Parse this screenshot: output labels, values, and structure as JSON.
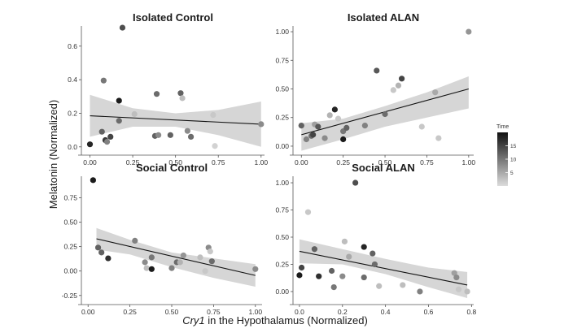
{
  "colors": {
    "ci_band": "#d6d6d6",
    "trend_line": "#111111",
    "axis_line": "#555555",
    "point_dark": "#111111",
    "point_light": "#dcdcdc"
  },
  "figure": {
    "ylabel": "Melatonin (Normalized)",
    "xlabel_italic": "Cry1",
    "xlabel_rest": " in the Hypothalamus (Normalized)",
    "legend": {
      "title": "Time",
      "range": [
        0,
        20
      ],
      "ticks": [
        "15",
        "10",
        "5"
      ]
    }
  },
  "chart_data": [
    {
      "type": "scatter",
      "title": "Isolated Control",
      "xlim": [
        -0.05,
        1.02
      ],
      "ylim": [
        -0.03,
        0.72
      ],
      "xticks": [
        "0.00",
        "0.25",
        "0.50",
        "0.75",
        "1.00"
      ],
      "xtick_values": [
        0,
        0.25,
        0.5,
        0.75,
        1.0
      ],
      "yticks": [
        "0.0",
        "0.2",
        "0.4",
        "0.6"
      ],
      "ytick_values": [
        0,
        0.2,
        0.4,
        0.6
      ],
      "trend": {
        "x": [
          0.0,
          1.0
        ],
        "y": [
          0.185,
          0.135
        ]
      },
      "band": {
        "x": [
          0.0,
          0.25,
          0.5,
          0.75,
          1.0
        ],
        "upper": [
          0.31,
          0.23,
          0.2,
          0.22,
          0.27
        ],
        "lower": [
          0.06,
          0.12,
          0.12,
          0.07,
          0.0
        ]
      },
      "points": [
        {
          "x": 0.0,
          "y": 0.015,
          "t": 18
        },
        {
          "x": 0.07,
          "y": 0.09,
          "t": 12
        },
        {
          "x": 0.08,
          "y": 0.395,
          "t": 10
        },
        {
          "x": 0.09,
          "y": 0.04,
          "t": 16
        },
        {
          "x": 0.1,
          "y": 0.03,
          "t": 9
        },
        {
          "x": 0.12,
          "y": 0.06,
          "t": 15
        },
        {
          "x": 0.17,
          "y": 0.275,
          "t": 19
        },
        {
          "x": 0.17,
          "y": 0.155,
          "t": 11
        },
        {
          "x": 0.19,
          "y": 0.71,
          "t": 14
        },
        {
          "x": 0.26,
          "y": 0.195,
          "t": 3
        },
        {
          "x": 0.38,
          "y": 0.065,
          "t": 12
        },
        {
          "x": 0.39,
          "y": 0.315,
          "t": 11
        },
        {
          "x": 0.4,
          "y": 0.07,
          "t": 8
        },
        {
          "x": 0.47,
          "y": 0.07,
          "t": 12
        },
        {
          "x": 0.53,
          "y": 0.32,
          "t": 12
        },
        {
          "x": 0.54,
          "y": 0.29,
          "t": 3
        },
        {
          "x": 0.57,
          "y": 0.095,
          "t": 8
        },
        {
          "x": 0.59,
          "y": 0.06,
          "t": 11
        },
        {
          "x": 0.72,
          "y": 0.19,
          "t": 2
        },
        {
          "x": 0.73,
          "y": 0.005,
          "t": 1
        },
        {
          "x": 1.0,
          "y": 0.135,
          "t": 8
        }
      ]
    },
    {
      "type": "scatter",
      "title": "Isolated ALAN",
      "xlim": [
        -0.05,
        1.03
      ],
      "ylim": [
        -0.05,
        1.05
      ],
      "xticks": [
        "0.00",
        "0.25",
        "0.50",
        "0.75",
        "1.00"
      ],
      "xtick_values": [
        0,
        0.25,
        0.5,
        0.75,
        1.0
      ],
      "yticks": [
        "0.00",
        "0.25",
        "0.50",
        "0.75",
        "1.00"
      ],
      "ytick_values": [
        0,
        0.25,
        0.5,
        0.75,
        1.0
      ],
      "trend": {
        "x": [
          0.0,
          1.0
        ],
        "y": [
          0.1,
          0.5
        ]
      },
      "band": {
        "x": [
          0.0,
          0.25,
          0.5,
          0.75,
          1.0
        ],
        "upper": [
          0.2,
          0.24,
          0.35,
          0.47,
          0.61
        ],
        "lower": [
          -0.04,
          0.06,
          0.17,
          0.25,
          0.33
        ]
      },
      "points": [
        {
          "x": 0.0,
          "y": 0.18,
          "t": 12
        },
        {
          "x": 0.03,
          "y": 0.06,
          "t": 9
        },
        {
          "x": 0.06,
          "y": 0.09,
          "t": 11
        },
        {
          "x": 0.07,
          "y": 0.1,
          "t": 15
        },
        {
          "x": 0.08,
          "y": 0.19,
          "t": 6
        },
        {
          "x": 0.1,
          "y": 0.17,
          "t": 13
        },
        {
          "x": 0.14,
          "y": 0.07,
          "t": 8
        },
        {
          "x": 0.17,
          "y": 0.27,
          "t": 4
        },
        {
          "x": 0.2,
          "y": 0.32,
          "t": 18
        },
        {
          "x": 0.22,
          "y": 0.24,
          "t": 2
        },
        {
          "x": 0.25,
          "y": 0.06,
          "t": 19
        },
        {
          "x": 0.25,
          "y": 0.13,
          "t": 10
        },
        {
          "x": 0.27,
          "y": 0.16,
          "t": 12
        },
        {
          "x": 0.38,
          "y": 0.18,
          "t": 9
        },
        {
          "x": 0.45,
          "y": 0.66,
          "t": 13
        },
        {
          "x": 0.5,
          "y": 0.28,
          "t": 11
        },
        {
          "x": 0.55,
          "y": 0.49,
          "t": 2
        },
        {
          "x": 0.58,
          "y": 0.53,
          "t": 4
        },
        {
          "x": 0.6,
          "y": 0.59,
          "t": 15
        },
        {
          "x": 0.72,
          "y": 0.17,
          "t": 2
        },
        {
          "x": 0.8,
          "y": 0.47,
          "t": 5
        },
        {
          "x": 0.82,
          "y": 0.07,
          "t": 2
        },
        {
          "x": 1.0,
          "y": 1.0,
          "t": 7
        }
      ]
    },
    {
      "type": "scatter",
      "title": "Social Control",
      "xlim": [
        -0.04,
        1.04
      ],
      "ylim": [
        -0.31,
        0.97
      ],
      "xticks": [
        "0.00",
        "0.25",
        "0.50",
        "0.75",
        "1.00"
      ],
      "xtick_values": [
        0,
        0.25,
        0.5,
        0.75,
        1.0
      ],
      "yticks": [
        "-0.25",
        "0.00",
        "0.25",
        "0.50",
        "0.75"
      ],
      "ytick_values": [
        -0.25,
        0,
        0.25,
        0.5,
        0.75
      ],
      "trend": {
        "x": [
          0.05,
          1.0
        ],
        "y": [
          0.33,
          -0.045
        ]
      },
      "band": {
        "x": [
          0.05,
          0.25,
          0.5,
          0.75,
          1.0
        ],
        "upper": [
          0.44,
          0.32,
          0.19,
          0.13,
          0.07
        ],
        "lower": [
          0.22,
          0.17,
          0.04,
          -0.07,
          -0.16
        ]
      },
      "points": [
        {
          "x": 0.03,
          "y": 0.93,
          "t": 19
        },
        {
          "x": 0.06,
          "y": 0.24,
          "t": 12
        },
        {
          "x": 0.08,
          "y": 0.19,
          "t": 12
        },
        {
          "x": 0.12,
          "y": 0.13,
          "t": 17
        },
        {
          "x": 0.28,
          "y": 0.31,
          "t": 9
        },
        {
          "x": 0.34,
          "y": 0.09,
          "t": 8
        },
        {
          "x": 0.35,
          "y": 0.03,
          "t": 3
        },
        {
          "x": 0.38,
          "y": 0.02,
          "t": 19
        },
        {
          "x": 0.38,
          "y": 0.14,
          "t": 10
        },
        {
          "x": 0.5,
          "y": 0.03,
          "t": 9
        },
        {
          "x": 0.53,
          "y": 0.09,
          "t": 11
        },
        {
          "x": 0.55,
          "y": 0.09,
          "t": 4
        },
        {
          "x": 0.57,
          "y": 0.16,
          "t": 7
        },
        {
          "x": 0.67,
          "y": 0.14,
          "t": 3
        },
        {
          "x": 0.7,
          "y": 0.0,
          "t": 2
        },
        {
          "x": 0.72,
          "y": 0.24,
          "t": 8
        },
        {
          "x": 0.73,
          "y": 0.2,
          "t": 2
        },
        {
          "x": 0.74,
          "y": 0.1,
          "t": 11
        },
        {
          "x": 1.0,
          "y": 0.02,
          "t": 8
        }
      ]
    },
    {
      "type": "scatter",
      "title": "Social ALAN",
      "xlim": [
        -0.03,
        0.81
      ],
      "ylim": [
        -0.09,
        1.06
      ],
      "xticks": [
        "0.0",
        "0.2",
        "0.4",
        "0.6",
        "0.8"
      ],
      "xtick_values": [
        0,
        0.2,
        0.4,
        0.6,
        0.8
      ],
      "yticks": [
        "0.00",
        "0.25",
        "0.50",
        "0.75",
        "1.00"
      ],
      "ytick_values": [
        0,
        0.25,
        0.5,
        0.75,
        1.0
      ],
      "trend": {
        "x": [
          0.0,
          0.78
        ],
        "y": [
          0.37,
          0.06
        ]
      },
      "band": {
        "x": [
          0.0,
          0.2,
          0.4,
          0.6,
          0.78
        ],
        "upper": [
          0.48,
          0.39,
          0.3,
          0.22,
          0.18
        ],
        "lower": [
          0.26,
          0.25,
          0.16,
          0.04,
          -0.06
        ]
      },
      "points": [
        {
          "x": 0.0,
          "y": 0.15,
          "t": 19
        },
        {
          "x": 0.01,
          "y": 0.22,
          "t": 15
        },
        {
          "x": 0.04,
          "y": 0.73,
          "t": 2
        },
        {
          "x": 0.07,
          "y": 0.39,
          "t": 12
        },
        {
          "x": 0.09,
          "y": 0.14,
          "t": 17
        },
        {
          "x": 0.15,
          "y": 0.19,
          "t": 12
        },
        {
          "x": 0.16,
          "y": 0.04,
          "t": 10
        },
        {
          "x": 0.2,
          "y": 0.14,
          "t": 8
        },
        {
          "x": 0.21,
          "y": 0.46,
          "t": 3
        },
        {
          "x": 0.23,
          "y": 0.32,
          "t": 5
        },
        {
          "x": 0.26,
          "y": 1.0,
          "t": 14
        },
        {
          "x": 0.3,
          "y": 0.41,
          "t": 18
        },
        {
          "x": 0.3,
          "y": 0.13,
          "t": 11
        },
        {
          "x": 0.34,
          "y": 0.35,
          "t": 12
        },
        {
          "x": 0.35,
          "y": 0.25,
          "t": 11
        },
        {
          "x": 0.37,
          "y": 0.05,
          "t": 3
        },
        {
          "x": 0.48,
          "y": 0.06,
          "t": 3
        },
        {
          "x": 0.56,
          "y": 0.0,
          "t": 9
        },
        {
          "x": 0.72,
          "y": 0.17,
          "t": 6
        },
        {
          "x": 0.73,
          "y": 0.13,
          "t": 8
        },
        {
          "x": 0.74,
          "y": 0.02,
          "t": 2
        },
        {
          "x": 0.78,
          "y": 0.0,
          "t": 3
        }
      ]
    }
  ]
}
